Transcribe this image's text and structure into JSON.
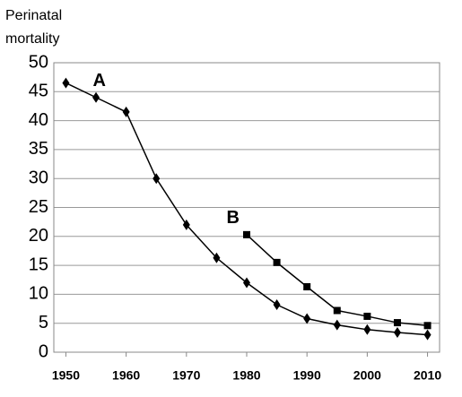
{
  "chart_data": {
    "type": "line",
    "y_label_lines": [
      "Perinatal",
      "mortality"
    ],
    "x": [
      1950,
      1955,
      1960,
      1965,
      1970,
      1975,
      1980,
      1985,
      1990,
      1995,
      2000,
      2005,
      2010
    ],
    "series": [
      {
        "name": "A",
        "color": "#000000",
        "marker": "diamond",
        "values": [
          46.5,
          44,
          41.5,
          30,
          22,
          16.3,
          12,
          8.2,
          5.8,
          4.7,
          3.9,
          3.4,
          3
        ]
      },
      {
        "name": "B",
        "color": "#000000",
        "marker": "square",
        "values": [
          null,
          null,
          null,
          null,
          null,
          null,
          20.3,
          15.5,
          11.3,
          7.2,
          6.2,
          5.1,
          4.6
        ]
      }
    ],
    "xlim": [
      1948,
      2012
    ],
    "xticks": [
      1950,
      1960,
      1970,
      1980,
      1990,
      2000,
      2010
    ],
    "ylim": [
      0,
      50
    ],
    "yticks": [
      0,
      5,
      10,
      15,
      20,
      25,
      30,
      35,
      40,
      45,
      50
    ],
    "grid": true
  }
}
